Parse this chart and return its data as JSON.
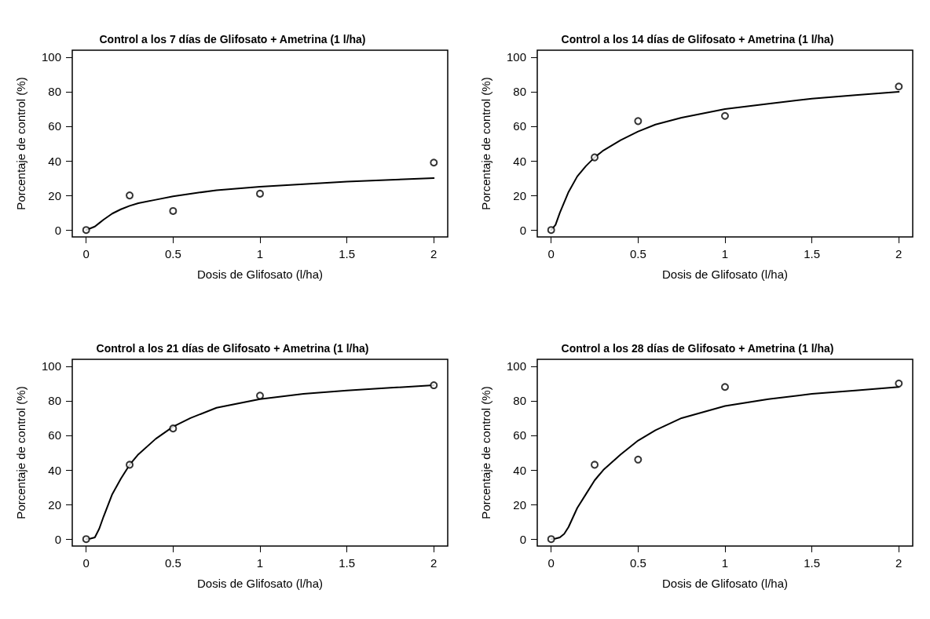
{
  "chart_data": [
    {
      "type": "scatter",
      "title": "Control a los 7 días de Glifosato + Ametrina (1 l/ha)",
      "xlabel": "Dosis de Glifosato (l/ha)",
      "ylabel": "Porcentaje de control (%)",
      "xlim": [
        -0.08,
        2.08
      ],
      "ylim": [
        -4,
        104
      ],
      "xticks": [
        0,
        0.5,
        1,
        1.5,
        2
      ],
      "yticks": [
        0,
        20,
        40,
        60,
        80,
        100
      ],
      "grid": false,
      "series": [
        {
          "marker": "circle",
          "color": "#000000",
          "x": [
            0,
            0.25,
            0.5,
            1,
            2
          ],
          "values": [
            0,
            20,
            11,
            21,
            39
          ]
        },
        {
          "type": "line",
          "marker": "none",
          "line_style": "solid",
          "color": "#000000",
          "x": [
            0,
            0.025,
            0.05,
            0.075,
            0.1,
            0.15,
            0.2,
            0.25,
            0.3,
            0.4,
            0.5,
            0.6,
            0.75,
            1,
            1.25,
            1.5,
            1.75,
            2
          ],
          "values": [
            0,
            1,
            2,
            4,
            6,
            9.5,
            12,
            14,
            15.5,
            17.5,
            19.5,
            21,
            23,
            25,
            26.5,
            28,
            29,
            30
          ]
        }
      ]
    },
    {
      "type": "scatter",
      "title": "Control a los 14 días de Glifosato + Ametrina (1 l/ha)",
      "xlabel": "Dosis de Glifosato (l/ha)",
      "ylabel": "Porcentaje de control (%)",
      "xlim": [
        -0.08,
        2.08
      ],
      "ylim": [
        -4,
        104
      ],
      "xticks": [
        0,
        0.5,
        1,
        1.5,
        2
      ],
      "yticks": [
        0,
        20,
        40,
        60,
        80,
        100
      ],
      "grid": false,
      "series": [
        {
          "marker": "circle",
          "color": "#000000",
          "x": [
            0,
            0.25,
            0.5,
            1,
            2
          ],
          "values": [
            0,
            42,
            63,
            66,
            83
          ]
        },
        {
          "type": "line",
          "marker": "none",
          "line_style": "solid",
          "color": "#000000",
          "x": [
            0,
            0.025,
            0.05,
            0.075,
            0.1,
            0.15,
            0.2,
            0.25,
            0.3,
            0.4,
            0.5,
            0.6,
            0.75,
            1,
            1.25,
            1.5,
            1.75,
            2
          ],
          "values": [
            0,
            3,
            10,
            16,
            22,
            31,
            37,
            42,
            46,
            52,
            57,
            61,
            65,
            70,
            73,
            76,
            78,
            80
          ]
        }
      ]
    },
    {
      "type": "scatter",
      "title": "Control a los 21 días de Glifosato + Ametrina (1 l/ha)",
      "xlabel": "Dosis de Glifosato (l/ha)",
      "ylabel": "Porcentaje de control (%)",
      "xlim": [
        -0.08,
        2.08
      ],
      "ylim": [
        -4,
        104
      ],
      "xticks": [
        0,
        0.5,
        1,
        1.5,
        2
      ],
      "yticks": [
        0,
        20,
        40,
        60,
        80,
        100
      ],
      "grid": false,
      "series": [
        {
          "marker": "circle",
          "color": "#000000",
          "x": [
            0,
            0.25,
            0.5,
            1,
            2
          ],
          "values": [
            0,
            43,
            64,
            83,
            89
          ]
        },
        {
          "type": "line",
          "marker": "none",
          "line_style": "solid",
          "color": "#000000",
          "x": [
            0,
            0.025,
            0.05,
            0.075,
            0.1,
            0.15,
            0.2,
            0.25,
            0.3,
            0.4,
            0.5,
            0.6,
            0.75,
            1,
            1.25,
            1.5,
            1.75,
            2
          ],
          "values": [
            0,
            0.3,
            1,
            6,
            13,
            26,
            35,
            43,
            49,
            58,
            65,
            70,
            76,
            81,
            84,
            86,
            87.5,
            89
          ]
        }
      ]
    },
    {
      "type": "scatter",
      "title": "Control a los 28 días de Glifosato + Ametrina (1 l/ha)",
      "xlabel": "Dosis de Glifosato (l/ha)",
      "ylabel": "Porcentaje de control (%)",
      "xlim": [
        -0.08,
        2.08
      ],
      "ylim": [
        -4,
        104
      ],
      "xticks": [
        0,
        0.5,
        1,
        1.5,
        2
      ],
      "yticks": [
        0,
        20,
        40,
        60,
        80,
        100
      ],
      "grid": false,
      "series": [
        {
          "marker": "circle",
          "color": "#000000",
          "x": [
            0,
            0.25,
            0.5,
            1,
            2
          ],
          "values": [
            0,
            43,
            46,
            88,
            90
          ]
        },
        {
          "type": "line",
          "marker": "none",
          "line_style": "solid",
          "color": "#000000",
          "x": [
            0,
            0.025,
            0.05,
            0.075,
            0.1,
            0.15,
            0.2,
            0.25,
            0.3,
            0.4,
            0.5,
            0.6,
            0.75,
            1,
            1.25,
            1.5,
            1.75,
            2
          ],
          "values": [
            0,
            0.3,
            1,
            3,
            7,
            18,
            26,
            34,
            40,
            49,
            57,
            63,
            70,
            77,
            81,
            84,
            86,
            88
          ]
        }
      ]
    }
  ]
}
